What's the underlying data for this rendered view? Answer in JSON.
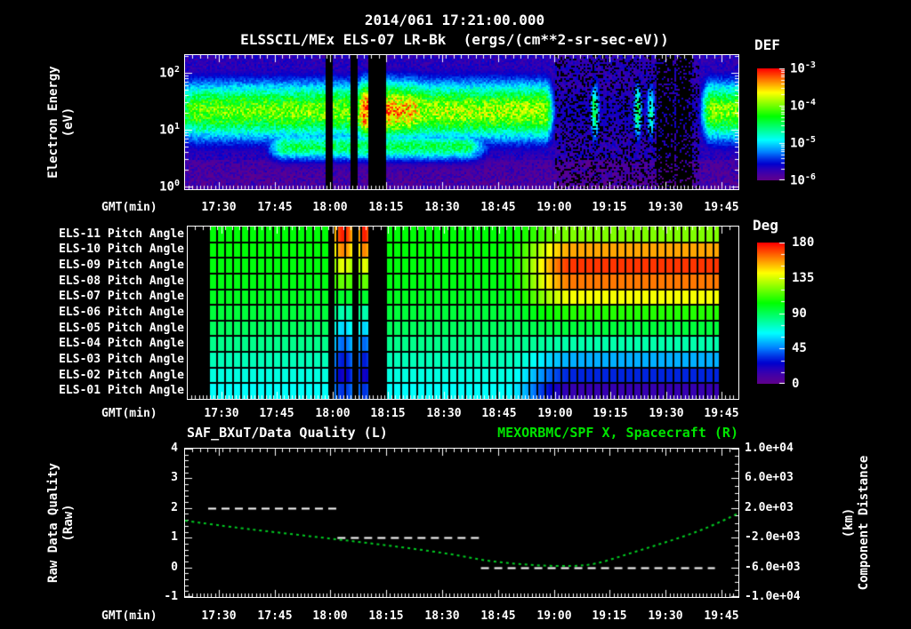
{
  "header": {
    "title": "2014/061 17:21:00.000",
    "subtitle": "ELSSCIL/MEx ELS-07 LR-Bk  (ergs/(cm**2-sr-sec-eV))"
  },
  "colors": {
    "background": "#000000",
    "text": "#ffffff",
    "accent_green": "#00e400",
    "quality_line": "#ffffff",
    "distance_line": "#00cc22"
  },
  "time_axis": {
    "label": "GMT(min)",
    "start": "17:21:00",
    "duration_min": 148.5,
    "first_tick_offset_min": 9,
    "tick_interval_min": 15,
    "ticks": [
      "17:30",
      "17:45",
      "18:00",
      "18:15",
      "18:30",
      "18:45",
      "19:00",
      "19:15",
      "19:30",
      "19:45"
    ]
  },
  "chart_data": [
    {
      "type": "heatmap",
      "name": "electron-energy-spectrogram",
      "title": "ELSSCIL/MEx ELS-07 LR-Bk",
      "units": "ergs/(cm**2-sr-sec-eV)",
      "ylabel": "Electron Energy",
      "yunit": "(eV)",
      "yscale": "log",
      "ylim_ev": [
        1,
        210
      ],
      "ytick_exps": [
        {
          "m": "10",
          "e": "2"
        },
        {
          "m": "10",
          "e": "1"
        },
        {
          "m": "10",
          "e": "0"
        }
      ],
      "colorbar": {
        "title": "DEF",
        "ticks": [
          {
            "m": "10",
            "e": "-3"
          },
          {
            "m": "10",
            "e": "-4"
          },
          {
            "m": "10",
            "e": "-5"
          },
          {
            "m": "10",
            "e": "-6"
          }
        ]
      },
      "band_center_ev": 22,
      "band_sigma_log": 0.36,
      "band_amp_keyframes": [
        [
          0,
          0.55
        ],
        [
          3,
          0.64
        ],
        [
          46.5,
          0.66
        ],
        [
          48,
          0.97
        ],
        [
          49.2,
          0.95
        ],
        [
          54,
          0.9
        ],
        [
          61,
          0.82
        ],
        [
          64,
          0.7
        ],
        [
          97,
          0.7
        ],
        [
          99.5,
          0.12
        ],
        [
          138,
          0.12
        ],
        [
          140.5,
          0.66
        ],
        [
          148.5,
          0.66
        ]
      ],
      "low_band_center_ev": 5.2,
      "low_band_sigma_log": 0.17,
      "low_band_amp_keyframes": [
        [
          0,
          0
        ],
        [
          20,
          0
        ],
        [
          26,
          0.5
        ],
        [
          76,
          0.5
        ],
        [
          84,
          0
        ],
        [
          148.5,
          0
        ]
      ],
      "gaps_min": [
        [
          37.8,
          39.7
        ],
        [
          44.4,
          46.1
        ],
        [
          49.2,
          53.8
        ]
      ],
      "sparse_interval_min": [
        99.5,
        138
      ],
      "streaks": [
        {
          "t": 110,
          "amp": 0.55
        },
        {
          "t": 121.5,
          "amp": 0.5
        },
        {
          "t": 125,
          "amp": 0.45
        }
      ],
      "blackout_min": [
        [
          126.5,
          131.5
        ],
        [
          131.7,
          136.2
        ]
      ]
    },
    {
      "type": "heatmap",
      "name": "pitch-angle-panels",
      "rows": [
        "ELS-11 Pitch Angle",
        "ELS-10 Pitch Angle",
        "ELS-09 Pitch Angle",
        "ELS-08 Pitch Angle",
        "ELS-07 Pitch Angle",
        "ELS-06 Pitch Angle",
        "ELS-05 Pitch Angle",
        "ELS-04 Pitch Angle",
        "ELS-03 Pitch Angle",
        "ELS-02 Pitch Angle",
        "ELS-01 Pitch Angle"
      ],
      "value_unit": "Deg",
      "vlim_deg": [
        0,
        180
      ],
      "colorbar": {
        "title": "Deg",
        "ticks": [
          180,
          135,
          90,
          45,
          0
        ]
      },
      "base_deg": [
        102,
        102,
        101,
        100,
        98,
        94,
        89,
        82,
        75,
        69,
        65
      ],
      "final_deg": [
        122,
        155,
        172,
        162,
        140,
        108,
        94,
        77,
        52,
        32,
        14
      ],
      "stripe_deg": [
        176,
        160,
        138,
        118,
        96,
        76,
        58,
        42,
        30,
        22,
        34
      ],
      "transition_min": [
        85,
        104
      ],
      "stripe_intervals_min": [
        [
          39.7,
          44.4
        ],
        [
          46.1,
          49.2
        ]
      ],
      "gaps_min": [
        [
          37.8,
          39.7
        ],
        [
          44.4,
          46.1
        ],
        [
          49.2,
          53.8
        ]
      ],
      "data_range_min": [
        5.5,
        143.2
      ],
      "cell_width_min": 2.15
    },
    {
      "type": "line",
      "name": "quality-and-distance",
      "left": {
        "label": "Raw Data Quality",
        "unit": "(Raw)",
        "ylim": [
          -1,
          4
        ],
        "yticks": [
          4,
          3,
          2,
          1,
          0,
          -1
        ],
        "series": {
          "name": "SAF_BXuT/Data Quality (L)",
          "style": "dashed",
          "segments": [
            {
              "t0": 6.2,
              "t1": 41.3,
              "value": 2
            },
            {
              "t0": 40.9,
              "t1": 79.6,
              "value": 1
            },
            {
              "t0": 79.4,
              "t1": 142.2,
              "value": 0
            }
          ]
        }
      },
      "right": {
        "label": "Component Distance",
        "unit": "(km)",
        "ylim": [
          -10000,
          10000
        ],
        "yticks": [
          "1.0e+04",
          "6.0e+03",
          "2.0e+03",
          "-2.0e+03",
          "-6.0e+03",
          "-1.0e+04"
        ],
        "series": {
          "name": "MEXORBMC/SPF X, Spacecraft (R)",
          "style": "dotted",
          "points": [
            [
              0,
              300
            ],
            [
              12,
              -550
            ],
            [
              24,
              -1250
            ],
            [
              36,
              -1950
            ],
            [
              48,
              -2650
            ],
            [
              60,
              -3400
            ],
            [
              72,
              -4250
            ],
            [
              80,
              -5050
            ],
            [
              88,
              -5500
            ],
            [
              96,
              -5780
            ],
            [
              104,
              -5850
            ],
            [
              110,
              -5600
            ],
            [
              117,
              -4500
            ],
            [
              124,
              -3400
            ],
            [
              131,
              -2300
            ],
            [
              138,
              -1100
            ],
            [
              144,
              200
            ],
            [
              148.5,
              1300
            ]
          ]
        }
      }
    }
  ]
}
